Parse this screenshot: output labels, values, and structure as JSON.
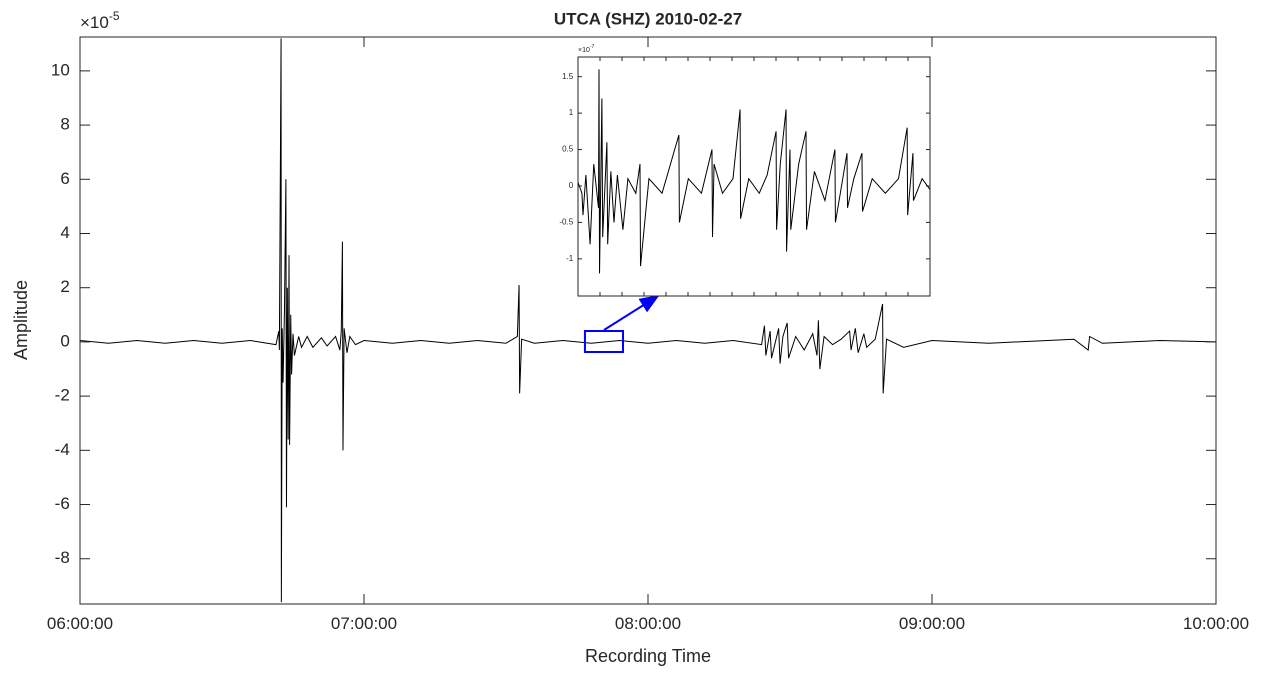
{
  "chart_data": [
    {
      "type": "line",
      "title": "UTCA (SHZ) 2010-02-27",
      "x_label": "Recording Time",
      "y_label": "Amplitude",
      "y_multiplier": "×10",
      "y_exponent": "-5",
      "color": "#000000",
      "xlim": [
        6,
        10
      ],
      "xticks": [
        {
          "value": 6,
          "label": "06:00:00"
        },
        {
          "value": 7,
          "label": "07:00:00"
        },
        {
          "value": 8,
          "label": "08:00:00"
        },
        {
          "value": 9,
          "label": "09:00:00"
        },
        {
          "value": 10,
          "label": "10:00:00"
        }
      ],
      "ylim": [
        -9.67,
        11.25
      ],
      "yticks": [
        -8,
        -6,
        -4,
        -2,
        0,
        2,
        4,
        6,
        8,
        10
      ],
      "x": [
        6.0,
        6.1,
        6.2,
        6.3,
        6.4,
        6.5,
        6.6,
        6.69,
        6.7,
        6.702,
        6.708,
        6.709,
        6.712,
        6.715,
        6.72,
        6.725,
        6.727,
        6.73,
        6.733,
        6.736,
        6.738,
        6.742,
        6.745,
        6.75,
        6.755,
        6.77,
        6.78,
        6.8,
        6.82,
        6.85,
        6.87,
        6.9,
        6.915,
        6.92,
        6.924,
        6.926,
        6.93,
        6.94,
        6.95,
        6.97,
        7.0,
        7.1,
        7.2,
        7.3,
        7.4,
        7.5,
        7.54,
        7.546,
        7.548,
        7.555,
        7.6,
        7.7,
        7.8,
        7.9,
        8.0,
        8.1,
        8.2,
        8.3,
        8.4,
        8.41,
        8.415,
        8.43,
        8.435,
        8.46,
        8.465,
        8.475,
        8.49,
        8.495,
        8.52,
        8.55,
        8.58,
        8.595,
        8.6,
        8.605,
        8.62,
        8.65,
        8.68,
        8.71,
        8.715,
        8.73,
        8.74,
        8.76,
        8.77,
        8.8,
        8.826,
        8.828,
        8.84,
        8.9,
        9.0,
        9.2,
        9.5,
        9.55,
        9.555,
        9.6,
        9.8,
        10.0
      ],
      "values": [
        0.05,
        -0.05,
        0.05,
        -0.05,
        0.05,
        -0.05,
        0.05,
        -0.1,
        0.4,
        -0.3,
        11.2,
        -9.6,
        0.5,
        -1.5,
        1.2,
        6.0,
        -6.1,
        2.0,
        -3.6,
        3.2,
        -3.8,
        1.0,
        -1.2,
        0.3,
        -0.5,
        0.2,
        -0.2,
        0.2,
        -0.2,
        0.15,
        -0.15,
        0.2,
        -0.3,
        0.4,
        3.7,
        -4.0,
        0.5,
        -0.4,
        0.2,
        -0.1,
        0.05,
        -0.05,
        0.05,
        -0.05,
        0.05,
        -0.05,
        0.2,
        2.1,
        -1.9,
        0.1,
        -0.05,
        0.05,
        -0.05,
        0.05,
        -0.05,
        0.05,
        -0.05,
        0.05,
        -0.1,
        0.6,
        -0.5,
        0.4,
        -0.6,
        0.5,
        -0.8,
        0.2,
        0.7,
        -0.6,
        0.2,
        -0.3,
        0.3,
        -0.5,
        0.8,
        -1.0,
        0.2,
        -0.1,
        0.1,
        0.4,
        -0.3,
        0.5,
        -0.4,
        0.3,
        -0.2,
        0.1,
        1.4,
        -1.9,
        0.1,
        -0.2,
        0.05,
        -0.05,
        0.1,
        -0.3,
        0.2,
        -0.05,
        0.05,
        0
      ]
    },
    {
      "type": "line",
      "y_multiplier": "×10",
      "y_exponent": "-7",
      "color": "#000000",
      "xlim": [
        7.778,
        7.912
      ],
      "ylim": [
        -1.51,
        1.77
      ],
      "yticks": [
        -1,
        -0.5,
        0,
        0.5,
        1,
        1.5
      ],
      "x": [
        7.778,
        7.7795,
        7.7799,
        7.781,
        7.7826,
        7.784,
        7.7858,
        7.786,
        7.7862,
        7.7871,
        7.7874,
        7.789,
        7.7893,
        7.7905,
        7.7917,
        7.793,
        7.7951,
        7.797,
        7.8,
        7.8016,
        7.8018,
        7.805,
        7.81,
        7.8164,
        7.8166,
        7.82,
        7.825,
        7.829,
        7.8292,
        7.8298,
        7.833,
        7.837,
        7.8397,
        7.8399,
        7.843,
        7.847,
        7.85,
        7.8534,
        7.8536,
        7.855,
        7.8572,
        7.8574,
        7.8587,
        7.859,
        7.862,
        7.8648,
        7.865,
        7.868,
        7.872,
        7.8758,
        7.876,
        7.8804,
        7.8806,
        7.883,
        7.8861,
        7.8863,
        7.89,
        7.895,
        7.9,
        7.9033,
        7.9035,
        7.9055,
        7.9057,
        7.909,
        7.912
      ],
      "values": [
        0.05,
        -0.1,
        -0.4,
        0.15,
        -0.8,
        0.3,
        -0.3,
        1.6,
        -1.2,
        1.2,
        -0.7,
        0.6,
        -0.8,
        0.2,
        -0.5,
        0.15,
        -0.6,
        0.1,
        -0.1,
        0.3,
        -1.1,
        0.1,
        -0.1,
        0.7,
        -0.5,
        0.1,
        -0.1,
        0.5,
        -0.7,
        0.3,
        -0.1,
        0.1,
        1.05,
        -0.45,
        0.1,
        -0.1,
        0.15,
        0.75,
        -0.6,
        0.3,
        1.05,
        -0.9,
        0.5,
        -0.6,
        0.3,
        0.75,
        -0.6,
        0.2,
        -0.2,
        0.5,
        -0.5,
        0.45,
        -0.3,
        0.1,
        0.45,
        -0.35,
        0.1,
        -0.1,
        0.1,
        0.8,
        -0.4,
        0.45,
        -0.2,
        0.1,
        -0.05
      ]
    }
  ]
}
